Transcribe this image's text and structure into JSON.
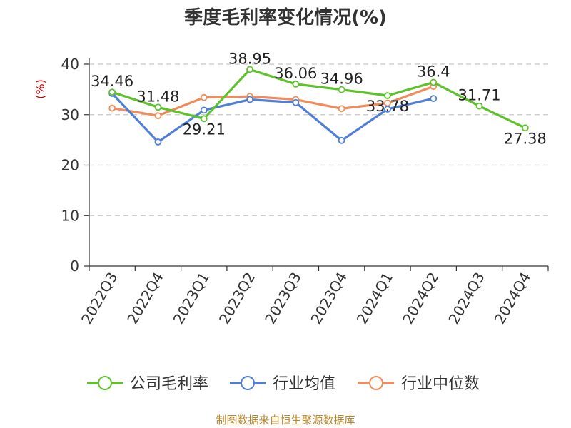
{
  "chart_data": {
    "type": "line",
    "title": "季度毛利率变化情况(%)",
    "ylabel": "(%)",
    "xlabel": "",
    "ylim": [
      0,
      40
    ],
    "yticks": [
      0,
      10,
      20,
      30,
      40
    ],
    "grid": true,
    "legend_position": "bottom",
    "categories": [
      "2022Q3",
      "2022Q4",
      "2023Q1",
      "2023Q2",
      "2023Q3",
      "2023Q4",
      "2024Q1",
      "2024Q2",
      "2024Q3",
      "2024Q4"
    ],
    "series": [
      {
        "name": "公司毛利率",
        "color": "#5ec22b",
        "values": [
          34.46,
          31.48,
          29.21,
          38.95,
          36.06,
          34.96,
          33.78,
          36.4,
          31.71,
          27.38
        ],
        "labels": [
          "34.46",
          "31.48",
          "29.21",
          "38.95",
          "36.06",
          "34.96",
          "33.78",
          "36.4",
          "31.71",
          "27.38"
        ]
      },
      {
        "name": "行业均值",
        "color": "#4f7fd6",
        "values": [
          34.2,
          24.6,
          30.9,
          33.0,
          32.4,
          24.9,
          31.1,
          33.2,
          null,
          null
        ]
      },
      {
        "name": "行业中位数",
        "color": "#f08c5a",
        "values": [
          31.3,
          29.8,
          33.4,
          33.6,
          33.0,
          31.2,
          32.3,
          35.6,
          null,
          null
        ]
      }
    ]
  },
  "footer": {
    "source": "制图数据来自恒生聚源数据库"
  }
}
